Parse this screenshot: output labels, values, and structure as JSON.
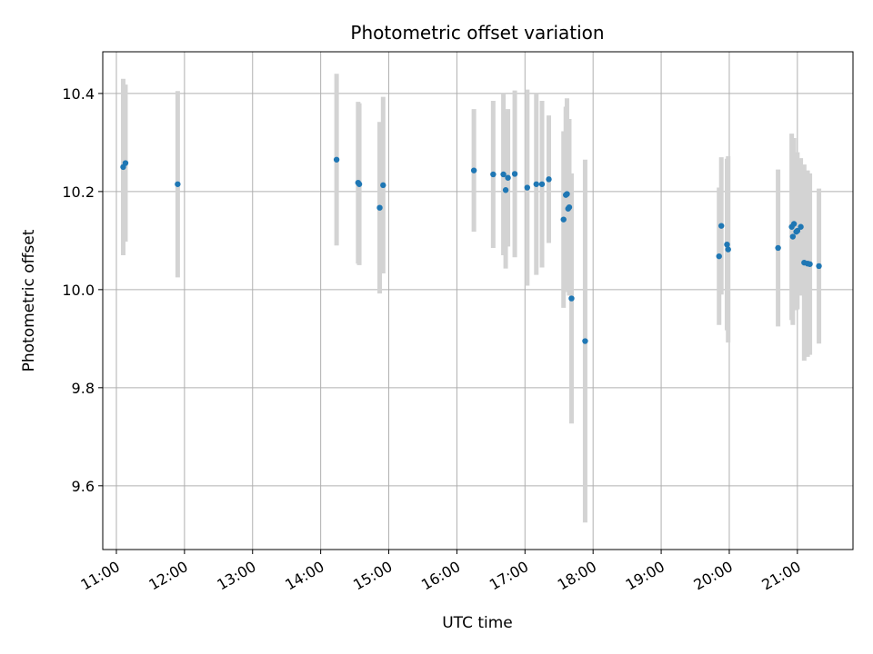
{
  "chart_data": {
    "type": "scatter",
    "title": "Photometric offset variation",
    "xlabel": "UTC time",
    "ylabel": "Photometric offset",
    "x_axis_kind": "time",
    "xlim": [
      "10:48",
      "21:49"
    ],
    "ylim": [
      9.47,
      10.485
    ],
    "grid": true,
    "legend": "none",
    "x_ticks": [
      "11:00",
      "12:00",
      "13:00",
      "14:00",
      "15:00",
      "16:00",
      "17:00",
      "18:00",
      "19:00",
      "20:00",
      "21:00"
    ],
    "y_ticks": [
      "9.6",
      "9.8",
      "10.0",
      "10.2",
      "10.4"
    ],
    "colors": {
      "point": "#1f77b4",
      "errorbar": "#d3d3d3",
      "grid": "#b0b0b0"
    },
    "series": [
      {
        "points": [
          {
            "x": "11:06",
            "y": 10.25,
            "err": 0.18
          },
          {
            "x": "11:08",
            "y": 10.258,
            "err": 0.16
          },
          {
            "x": "11:54",
            "y": 10.215,
            "err": 0.19
          },
          {
            "x": "14:14",
            "y": 10.265,
            "err": 0.175
          },
          {
            "x": "14:33",
            "y": 10.218,
            "err": 0.165
          },
          {
            "x": "14:34",
            "y": 10.215,
            "err": 0.165
          },
          {
            "x": "14:52",
            "y": 10.167,
            "err": 0.175
          },
          {
            "x": "14:55",
            "y": 10.213,
            "err": 0.18
          },
          {
            "x": "16:15",
            "y": 10.243,
            "err": 0.125
          },
          {
            "x": "16:32",
            "y": 10.235,
            "err": 0.15
          },
          {
            "x": "16:41",
            "y": 10.235,
            "err": 0.165
          },
          {
            "x": "16:43",
            "y": 10.203,
            "err": 0.16
          },
          {
            "x": "16:45",
            "y": 10.228,
            "err": 0.14
          },
          {
            "x": "16:51",
            "y": 10.236,
            "err": 0.17
          },
          {
            "x": "17:02",
            "y": 10.208,
            "err": 0.2
          },
          {
            "x": "17:10",
            "y": 10.215,
            "err": 0.185
          },
          {
            "x": "17:15",
            "y": 10.215,
            "err": 0.17
          },
          {
            "x": "17:21",
            "y": 10.225,
            "err": 0.13
          },
          {
            "x": "17:34",
            "y": 10.143,
            "err": 0.18
          },
          {
            "x": "17:36",
            "y": 10.193,
            "err": 0.18
          },
          {
            "x": "17:37",
            "y": 10.195,
            "err": 0.195
          },
          {
            "x": "17:38",
            "y": 10.165,
            "err": 0.17
          },
          {
            "x": "17:39",
            "y": 10.168,
            "err": 0.18
          },
          {
            "x": "17:41",
            "y": 9.982,
            "err": 0.255
          },
          {
            "x": "17:53",
            "y": 9.895,
            "err": 0.37
          },
          {
            "x": "19:51",
            "y": 10.068,
            "err": 0.14
          },
          {
            "x": "19:53",
            "y": 10.13,
            "err": 0.14
          },
          {
            "x": "19:58",
            "y": 10.092,
            "err": 0.175
          },
          {
            "x": "19:59",
            "y": 10.082,
            "err": 0.19
          },
          {
            "x": "20:43",
            "y": 10.085,
            "err": 0.16
          },
          {
            "x": "20:55",
            "y": 10.128,
            "err": 0.19
          },
          {
            "x": "20:56",
            "y": 10.108,
            "err": 0.18
          },
          {
            "x": "20:57",
            "y": 10.134,
            "err": 0.175
          },
          {
            "x": "20:59",
            "y": 10.118,
            "err": 0.16
          },
          {
            "x": "21:00",
            "y": 10.12,
            "err": 0.16
          },
          {
            "x": "21:03",
            "y": 10.128,
            "err": 0.14
          },
          {
            "x": "21:06",
            "y": 10.055,
            "err": 0.2
          },
          {
            "x": "21:09",
            "y": 10.053,
            "err": 0.19
          },
          {
            "x": "21:11",
            "y": 10.052,
            "err": 0.185
          },
          {
            "x": "21:19",
            "y": 10.048,
            "err": 0.158
          }
        ]
      }
    ]
  }
}
